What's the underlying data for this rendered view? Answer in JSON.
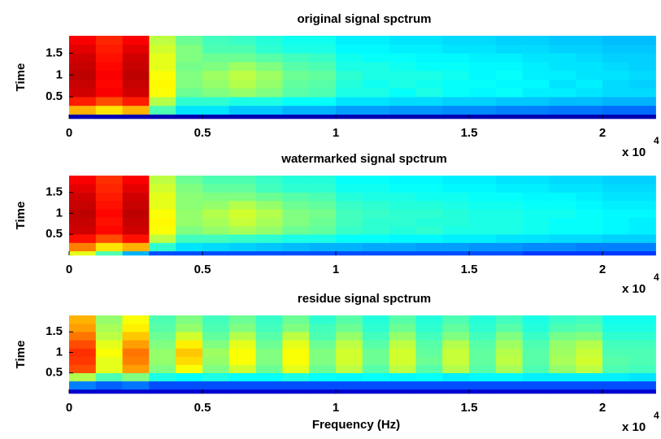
{
  "chart_data": [
    {
      "type": "heatmap",
      "title": "original signal spctrum",
      "ylabel": "Time",
      "colormap": "jet",
      "xlim": [
        0,
        2.2
      ],
      "ylim": [
        0,
        1.9
      ],
      "xticks": [
        0,
        0.5,
        1,
        1.5,
        2
      ],
      "yticks": [
        0.5,
        1,
        1.5
      ],
      "x_multiplier": "x 10",
      "x_exponent": "4",
      "x_edges": [
        0,
        0.1,
        0.2,
        0.3,
        0.4,
        0.5,
        0.6,
        0.7,
        0.8,
        0.9,
        1,
        1.1,
        1.2,
        1.3,
        1.4,
        1.5,
        1.6,
        1.7,
        1.8,
        1.9,
        2,
        2.1,
        2.2
      ],
      "y_edges": [
        0,
        0.1,
        0.3,
        0.5,
        0.7,
        0.9,
        1.1,
        1.3,
        1.5,
        1.7,
        1.9
      ],
      "z": [
        [
          0.05,
          0.05,
          0.05,
          0.05,
          0.05,
          0.05,
          0.05,
          0.05,
          0.05,
          0.05,
          0.05,
          0.05,
          0.05,
          0.05,
          0.05,
          0.05,
          0.05,
          0.05,
          0.05,
          0.05,
          0.05,
          0.05
        ],
        [
          0.7,
          0.65,
          0.7,
          0.45,
          0.35,
          0.35,
          0.32,
          0.32,
          0.3,
          0.3,
          0.28,
          0.28,
          0.27,
          0.27,
          0.26,
          0.26,
          0.25,
          0.25,
          0.24,
          0.24,
          0.23,
          0.23
        ],
        [
          0.85,
          0.8,
          0.85,
          0.55,
          0.42,
          0.42,
          0.4,
          0.4,
          0.38,
          0.38,
          0.35,
          0.35,
          0.34,
          0.34,
          0.33,
          0.33,
          0.32,
          0.32,
          0.31,
          0.31,
          0.3,
          0.3
        ],
        [
          0.92,
          0.88,
          0.92,
          0.62,
          0.48,
          0.5,
          0.52,
          0.5,
          0.46,
          0.45,
          0.4,
          0.4,
          0.38,
          0.4,
          0.38,
          0.37,
          0.38,
          0.36,
          0.36,
          0.35,
          0.34,
          0.34
        ],
        [
          0.93,
          0.87,
          0.93,
          0.63,
          0.5,
          0.52,
          0.55,
          0.52,
          0.47,
          0.46,
          0.41,
          0.39,
          0.4,
          0.39,
          0.38,
          0.38,
          0.37,
          0.37,
          0.35,
          0.36,
          0.34,
          0.33
        ],
        [
          0.94,
          0.88,
          0.94,
          0.62,
          0.5,
          0.53,
          0.56,
          0.53,
          0.48,
          0.47,
          0.42,
          0.4,
          0.4,
          0.4,
          0.39,
          0.37,
          0.38,
          0.36,
          0.36,
          0.35,
          0.35,
          0.34
        ],
        [
          0.93,
          0.87,
          0.93,
          0.6,
          0.49,
          0.5,
          0.53,
          0.5,
          0.46,
          0.45,
          0.4,
          0.4,
          0.39,
          0.38,
          0.38,
          0.37,
          0.37,
          0.36,
          0.35,
          0.35,
          0.34,
          0.33
        ],
        [
          0.92,
          0.86,
          0.92,
          0.6,
          0.5,
          0.48,
          0.48,
          0.46,
          0.44,
          0.43,
          0.39,
          0.38,
          0.38,
          0.37,
          0.37,
          0.36,
          0.36,
          0.35,
          0.35,
          0.34,
          0.33,
          0.33
        ],
        [
          0.9,
          0.85,
          0.9,
          0.58,
          0.5,
          0.45,
          0.45,
          0.42,
          0.4,
          0.4,
          0.37,
          0.37,
          0.36,
          0.36,
          0.35,
          0.35,
          0.34,
          0.34,
          0.33,
          0.33,
          0.32,
          0.32
        ],
        [
          0.88,
          0.84,
          0.88,
          0.56,
          0.48,
          0.44,
          0.43,
          0.41,
          0.39,
          0.39,
          0.36,
          0.36,
          0.35,
          0.35,
          0.34,
          0.34,
          0.33,
          0.33,
          0.32,
          0.32,
          0.31,
          0.31
        ]
      ]
    },
    {
      "type": "heatmap",
      "title": "watermarked signal spctrum",
      "ylabel": "Time",
      "colormap": "jet",
      "xlim": [
        0,
        2.2
      ],
      "ylim": [
        0,
        1.9
      ],
      "xticks": [
        0,
        0.5,
        1,
        1.5,
        2
      ],
      "yticks": [
        0.5,
        1,
        1.5
      ],
      "x_multiplier": "x 10",
      "x_exponent": "4",
      "x_edges": [
        0,
        0.1,
        0.2,
        0.3,
        0.4,
        0.5,
        0.6,
        0.7,
        0.8,
        0.9,
        1,
        1.1,
        1.2,
        1.3,
        1.4,
        1.5,
        1.6,
        1.7,
        1.8,
        1.9,
        2,
        2.1,
        2.2
      ],
      "y_edges": [
        0,
        0.1,
        0.3,
        0.5,
        0.7,
        0.9,
        1.1,
        1.3,
        1.5,
        1.7,
        1.9
      ],
      "z": [
        [
          0.6,
          0.45,
          0.3,
          0.2,
          0.2,
          0.2,
          0.2,
          0.2,
          0.2,
          0.2,
          0.2,
          0.2,
          0.2,
          0.2,
          0.2,
          0.2,
          0.2,
          0.18,
          0.18,
          0.18,
          0.18,
          0.18
        ],
        [
          0.75,
          0.65,
          0.7,
          0.42,
          0.35,
          0.34,
          0.33,
          0.32,
          0.31,
          0.3,
          0.3,
          0.29,
          0.29,
          0.28,
          0.28,
          0.27,
          0.27,
          0.26,
          0.26,
          0.25,
          0.25,
          0.25
        ],
        [
          0.86,
          0.8,
          0.86,
          0.56,
          0.44,
          0.44,
          0.43,
          0.42,
          0.4,
          0.4,
          0.38,
          0.38,
          0.37,
          0.37,
          0.36,
          0.36,
          0.35,
          0.35,
          0.34,
          0.34,
          0.33,
          0.33
        ],
        [
          0.92,
          0.87,
          0.92,
          0.62,
          0.5,
          0.52,
          0.54,
          0.52,
          0.48,
          0.47,
          0.43,
          0.42,
          0.41,
          0.42,
          0.4,
          0.4,
          0.4,
          0.39,
          0.38,
          0.38,
          0.37,
          0.36
        ],
        [
          0.93,
          0.86,
          0.93,
          0.63,
          0.52,
          0.54,
          0.57,
          0.54,
          0.5,
          0.48,
          0.44,
          0.42,
          0.42,
          0.41,
          0.41,
          0.4,
          0.4,
          0.39,
          0.38,
          0.38,
          0.37,
          0.36
        ],
        [
          0.94,
          0.87,
          0.94,
          0.62,
          0.52,
          0.55,
          0.58,
          0.55,
          0.5,
          0.49,
          0.44,
          0.43,
          0.42,
          0.42,
          0.41,
          0.4,
          0.4,
          0.39,
          0.39,
          0.38,
          0.37,
          0.37
        ],
        [
          0.93,
          0.86,
          0.93,
          0.6,
          0.51,
          0.52,
          0.55,
          0.52,
          0.48,
          0.47,
          0.43,
          0.42,
          0.41,
          0.41,
          0.4,
          0.39,
          0.39,
          0.38,
          0.38,
          0.37,
          0.36,
          0.36
        ],
        [
          0.92,
          0.85,
          0.92,
          0.6,
          0.51,
          0.5,
          0.5,
          0.48,
          0.46,
          0.45,
          0.41,
          0.4,
          0.4,
          0.39,
          0.39,
          0.38,
          0.38,
          0.37,
          0.37,
          0.36,
          0.35,
          0.35
        ],
        [
          0.9,
          0.84,
          0.9,
          0.58,
          0.5,
          0.47,
          0.47,
          0.44,
          0.42,
          0.42,
          0.39,
          0.39,
          0.38,
          0.38,
          0.37,
          0.37,
          0.36,
          0.36,
          0.35,
          0.35,
          0.34,
          0.34
        ],
        [
          0.88,
          0.83,
          0.88,
          0.56,
          0.48,
          0.45,
          0.45,
          0.43,
          0.41,
          0.41,
          0.38,
          0.38,
          0.37,
          0.37,
          0.36,
          0.36,
          0.35,
          0.35,
          0.34,
          0.34,
          0.33,
          0.33
        ]
      ]
    },
    {
      "type": "heatmap",
      "title": "residue signal spctrum",
      "ylabel": "Time",
      "xlabel": "Frequency (Hz)",
      "colormap": "jet",
      "xlim": [
        0,
        2.2
      ],
      "ylim": [
        0,
        1.9
      ],
      "xticks": [
        0,
        0.5,
        1,
        1.5,
        2
      ],
      "yticks": [
        0.5,
        1,
        1.5
      ],
      "x_multiplier": "x 10",
      "x_exponent": "4",
      "x_edges": [
        0,
        0.1,
        0.2,
        0.3,
        0.4,
        0.5,
        0.6,
        0.7,
        0.8,
        0.9,
        1,
        1.1,
        1.2,
        1.3,
        1.4,
        1.5,
        1.6,
        1.7,
        1.8,
        1.9,
        2,
        2.1,
        2.2
      ],
      "y_edges": [
        0,
        0.1,
        0.3,
        0.5,
        0.7,
        0.9,
        1.1,
        1.3,
        1.5,
        1.7,
        1.9
      ],
      "z": [
        [
          0.08,
          0.08,
          0.08,
          0.08,
          0.08,
          0.08,
          0.08,
          0.08,
          0.08,
          0.08,
          0.08,
          0.08,
          0.08,
          0.08,
          0.08,
          0.08,
          0.08,
          0.08,
          0.08,
          0.08,
          0.08,
          0.08
        ],
        [
          0.25,
          0.22,
          0.24,
          0.2,
          0.2,
          0.2,
          0.2,
          0.2,
          0.2,
          0.2,
          0.2,
          0.2,
          0.2,
          0.2,
          0.2,
          0.2,
          0.2,
          0.2,
          0.2,
          0.2,
          0.2,
          0.2
        ],
        [
          0.55,
          0.45,
          0.5,
          0.4,
          0.38,
          0.4,
          0.38,
          0.38,
          0.4,
          0.38,
          0.37,
          0.38,
          0.37,
          0.38,
          0.36,
          0.37,
          0.37,
          0.36,
          0.36,
          0.36,
          0.36,
          0.35
        ],
        [
          0.8,
          0.6,
          0.72,
          0.5,
          0.62,
          0.5,
          0.58,
          0.48,
          0.6,
          0.48,
          0.56,
          0.46,
          0.56,
          0.46,
          0.55,
          0.46,
          0.54,
          0.45,
          0.52,
          0.56,
          0.45,
          0.44
        ],
        [
          0.82,
          0.6,
          0.75,
          0.52,
          0.66,
          0.52,
          0.62,
          0.5,
          0.62,
          0.5,
          0.58,
          0.48,
          0.58,
          0.48,
          0.57,
          0.47,
          0.56,
          0.46,
          0.54,
          0.58,
          0.46,
          0.45
        ],
        [
          0.83,
          0.62,
          0.76,
          0.52,
          0.68,
          0.53,
          0.62,
          0.5,
          0.62,
          0.5,
          0.58,
          0.48,
          0.58,
          0.47,
          0.57,
          0.47,
          0.55,
          0.46,
          0.53,
          0.57,
          0.45,
          0.45
        ],
        [
          0.8,
          0.6,
          0.72,
          0.5,
          0.64,
          0.5,
          0.6,
          0.48,
          0.6,
          0.48,
          0.56,
          0.46,
          0.56,
          0.46,
          0.55,
          0.46,
          0.53,
          0.45,
          0.52,
          0.55,
          0.44,
          0.44
        ],
        [
          0.76,
          0.56,
          0.68,
          0.48,
          0.58,
          0.47,
          0.55,
          0.46,
          0.56,
          0.45,
          0.52,
          0.44,
          0.52,
          0.44,
          0.5,
          0.44,
          0.5,
          0.43,
          0.49,
          0.5,
          0.42,
          0.42
        ],
        [
          0.72,
          0.54,
          0.64,
          0.46,
          0.52,
          0.45,
          0.5,
          0.44,
          0.5,
          0.44,
          0.48,
          0.42,
          0.48,
          0.42,
          0.47,
          0.42,
          0.46,
          0.41,
          0.45,
          0.46,
          0.4,
          0.4
        ],
        [
          0.7,
          0.52,
          0.62,
          0.45,
          0.5,
          0.44,
          0.48,
          0.43,
          0.48,
          0.42,
          0.46,
          0.41,
          0.46,
          0.41,
          0.45,
          0.41,
          0.44,
          0.4,
          0.43,
          0.44,
          0.39,
          0.39
        ]
      ]
    }
  ]
}
